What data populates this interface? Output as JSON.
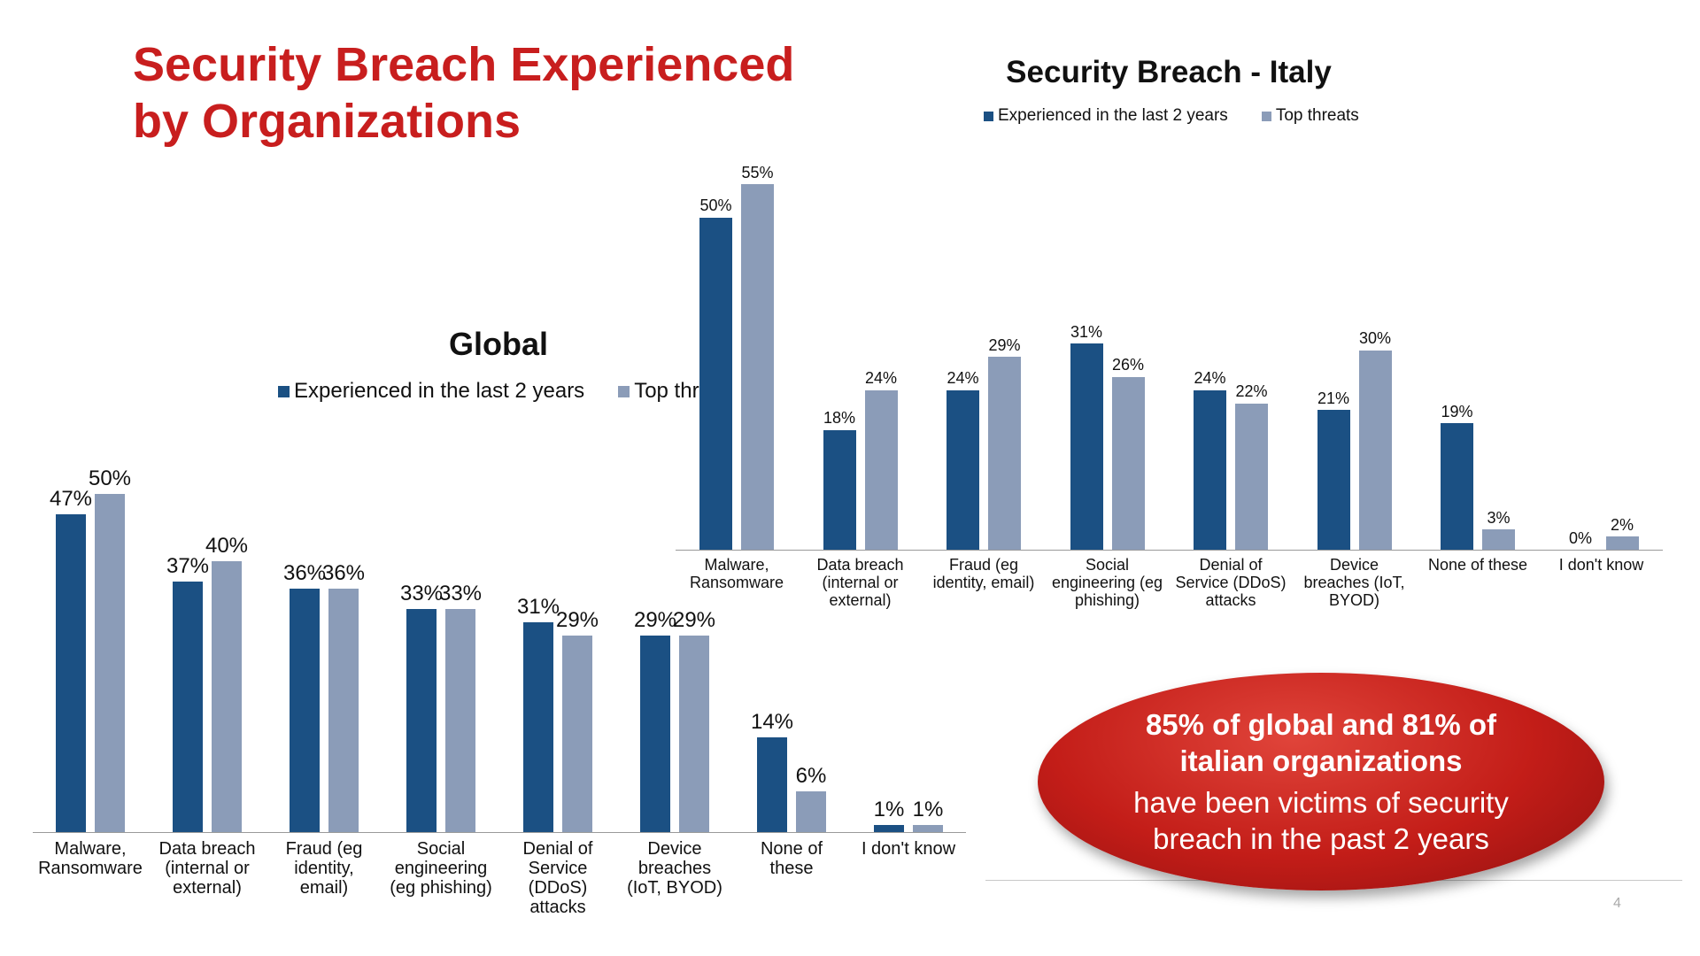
{
  "title": "Security Breach Experienced\nby Organizations",
  "callout": {
    "headline": "85% of global and 81% of\nitalian organizations",
    "text": "have been victims of security\nbreach in the past 2 years"
  },
  "page_number": "4",
  "chart_data": [
    {
      "type": "bar",
      "title": "Global",
      "categories": [
        "Malware,\nRansomware",
        "Data breach\n(internal or\nexternal)",
        "Fraud (eg\nidentity,\nemail)",
        "Social\nengineering\n(eg phishing)",
        "Denial of\nService\n(DDoS)\nattacks",
        "Device\nbreaches\n(IoT, BYOD)",
        "None of\nthese",
        "I don't know"
      ],
      "series": [
        {
          "name": "Experienced in the last 2 years",
          "color": "#1b5083",
          "values": [
            47,
            37,
            36,
            33,
            31,
            29,
            14,
            1
          ],
          "value_labels": [
            "47%",
            "37%",
            "36%",
            "33%",
            "31%",
            "29%",
            "14%",
            "1%"
          ]
        },
        {
          "name": "Top threats",
          "color": "#8b9cb8",
          "values": [
            50,
            40,
            36,
            33,
            29,
            29,
            6,
            1
          ],
          "value_labels": [
            "50%",
            "40%",
            "36%",
            "33%",
            "29%",
            "29%",
            "6%",
            "1%"
          ]
        }
      ]
    },
    {
      "type": "bar",
      "title": "Security Breach - Italy",
      "categories": [
        "Malware,\nRansomware",
        "Data breach\n(internal or\nexternal)",
        "Fraud (eg\nidentity, email)",
        "Social\nengineering (eg\nphishing)",
        "Denial of\nService (DDoS)\nattacks",
        "Device\nbreaches (IoT,\nBYOD)",
        "None of these",
        "I don't know"
      ],
      "series": [
        {
          "name": "Experienced in the last 2 years",
          "color": "#1b5083",
          "values": [
            50,
            18,
            24,
            31,
            24,
            21,
            19,
            0
          ],
          "value_labels": [
            "50%",
            "18%",
            "24%",
            "31%",
            "24%",
            "21%",
            "19%",
            "0%"
          ]
        },
        {
          "name": "Top threats",
          "color": "#8b9cb8",
          "values": [
            55,
            24,
            29,
            26,
            22,
            30,
            3,
            2
          ],
          "value_labels": [
            "55%",
            "24%",
            "29%",
            "26%",
            "22%",
            "30%",
            "3%",
            "2%"
          ]
        }
      ]
    }
  ]
}
